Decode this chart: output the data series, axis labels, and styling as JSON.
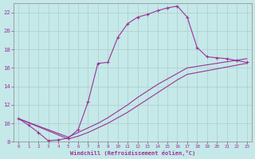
{
  "xlabel": "Windchill (Refroidissement éolien,°C)",
  "ylabel": "",
  "background_color": "#c5e8e8",
  "line_color": "#993399",
  "grid_color": "#b0cccc",
  "xlim": [
    -0.5,
    23.5
  ],
  "ylim": [
    8,
    23
  ],
  "xticks": [
    0,
    1,
    2,
    3,
    4,
    5,
    6,
    7,
    8,
    9,
    10,
    11,
    12,
    13,
    14,
    15,
    16,
    17,
    18,
    19,
    20,
    21,
    22,
    23
  ],
  "yticks": [
    8,
    10,
    12,
    14,
    16,
    18,
    20,
    22
  ],
  "line1_x": [
    0,
    1,
    2,
    3,
    4,
    5,
    6,
    7,
    8,
    9,
    10,
    11,
    12,
    13,
    14,
    15,
    16,
    17,
    18,
    19,
    20,
    21,
    22,
    23
  ],
  "line1_y": [
    10.5,
    9.8,
    9.0,
    8.1,
    8.2,
    8.4,
    9.3,
    12.3,
    16.5,
    16.6,
    19.3,
    20.8,
    21.5,
    21.8,
    22.2,
    22.5,
    22.7,
    21.5,
    18.2,
    17.2,
    17.1,
    17.0,
    16.8,
    16.6
  ],
  "line2_x": [
    0,
    5,
    6,
    7,
    8,
    9,
    10,
    11,
    12,
    13,
    14,
    15,
    16,
    17,
    23
  ],
  "line2_y": [
    10.5,
    8.5,
    9.0,
    9.5,
    10.0,
    10.6,
    11.3,
    12.0,
    12.8,
    13.5,
    14.2,
    14.8,
    15.4,
    16.0,
    17.0
  ],
  "line3_x": [
    0,
    5,
    6,
    7,
    8,
    9,
    10,
    11,
    12,
    13,
    14,
    15,
    16,
    17,
    23
  ],
  "line3_y": [
    10.5,
    8.3,
    8.6,
    9.0,
    9.5,
    10.0,
    10.6,
    11.2,
    11.9,
    12.6,
    13.3,
    14.0,
    14.7,
    15.3,
    16.5
  ]
}
